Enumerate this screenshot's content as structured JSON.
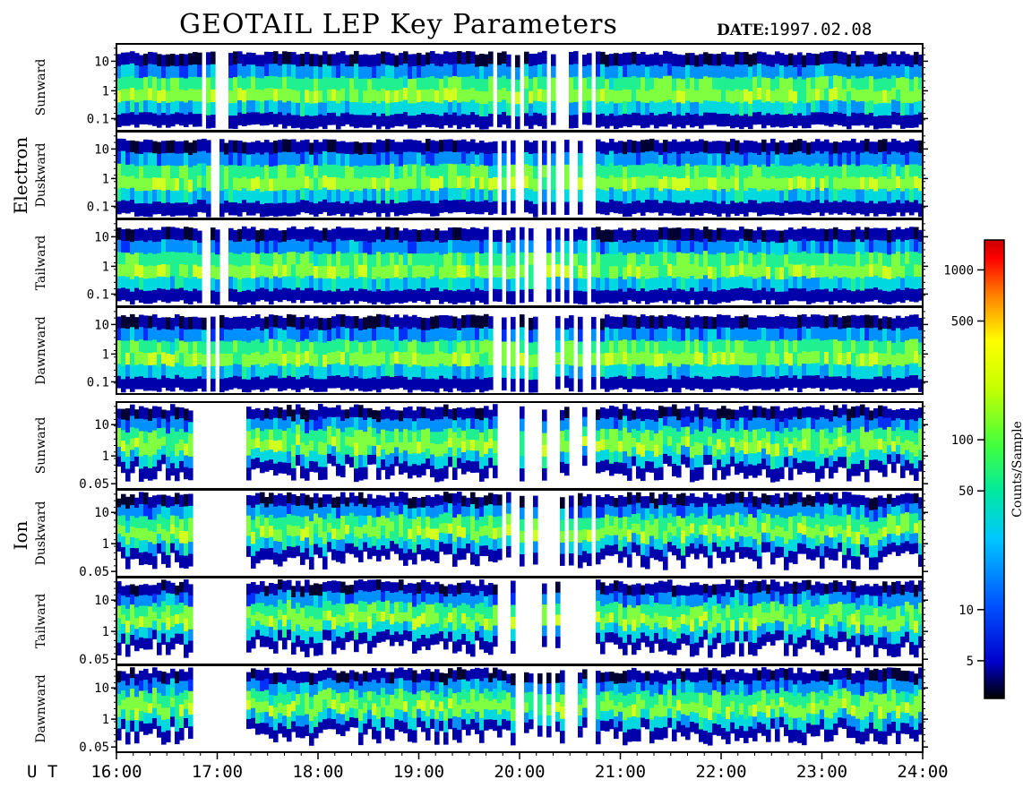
{
  "title": "GEOTAIL LEP Key Parameters",
  "date_label": "DATE:",
  "date_value": "1997.02.08",
  "chart_data": {
    "type": "heatmap",
    "time_axis": {
      "prefix": "U T",
      "ticks": [
        "16:00",
        "17:00",
        "18:00",
        "19:00",
        "20:00",
        "21:00",
        "22:00",
        "23:00",
        "24:00"
      ],
      "range": [
        "16:00",
        "24:00"
      ]
    },
    "groups": [
      {
        "name": "Electron",
        "ytick_labels": [
          "10",
          "1",
          "0.1"
        ],
        "panels": [
          {
            "name": "Sunward"
          },
          {
            "name": "Duskward"
          },
          {
            "name": "Tailward"
          },
          {
            "name": "Dawnward"
          }
        ]
      },
      {
        "name": "Ion",
        "ytick_labels": [
          "10",
          "1",
          "0.05"
        ],
        "panels": [
          {
            "name": "Sunward"
          },
          {
            "name": "Duskward"
          },
          {
            "name": "Tailward"
          },
          {
            "name": "Dawnward"
          }
        ]
      }
    ],
    "colorbar": {
      "label": "Counts/Sample",
      "scale": "log",
      "ticks": [
        "1000",
        "500",
        "100",
        "50",
        "10",
        "5"
      ],
      "tick_values": [
        1000,
        500,
        100,
        50,
        10,
        5
      ],
      "range": [
        3,
        1500
      ],
      "colors": [
        "#000000",
        "#0000cc",
        "#0050ff",
        "#00c8ff",
        "#00e8a0",
        "#40ff40",
        "#c8ff00",
        "#ffff00",
        "#ff8000",
        "#ff0000",
        "#cc0000"
      ]
    }
  }
}
